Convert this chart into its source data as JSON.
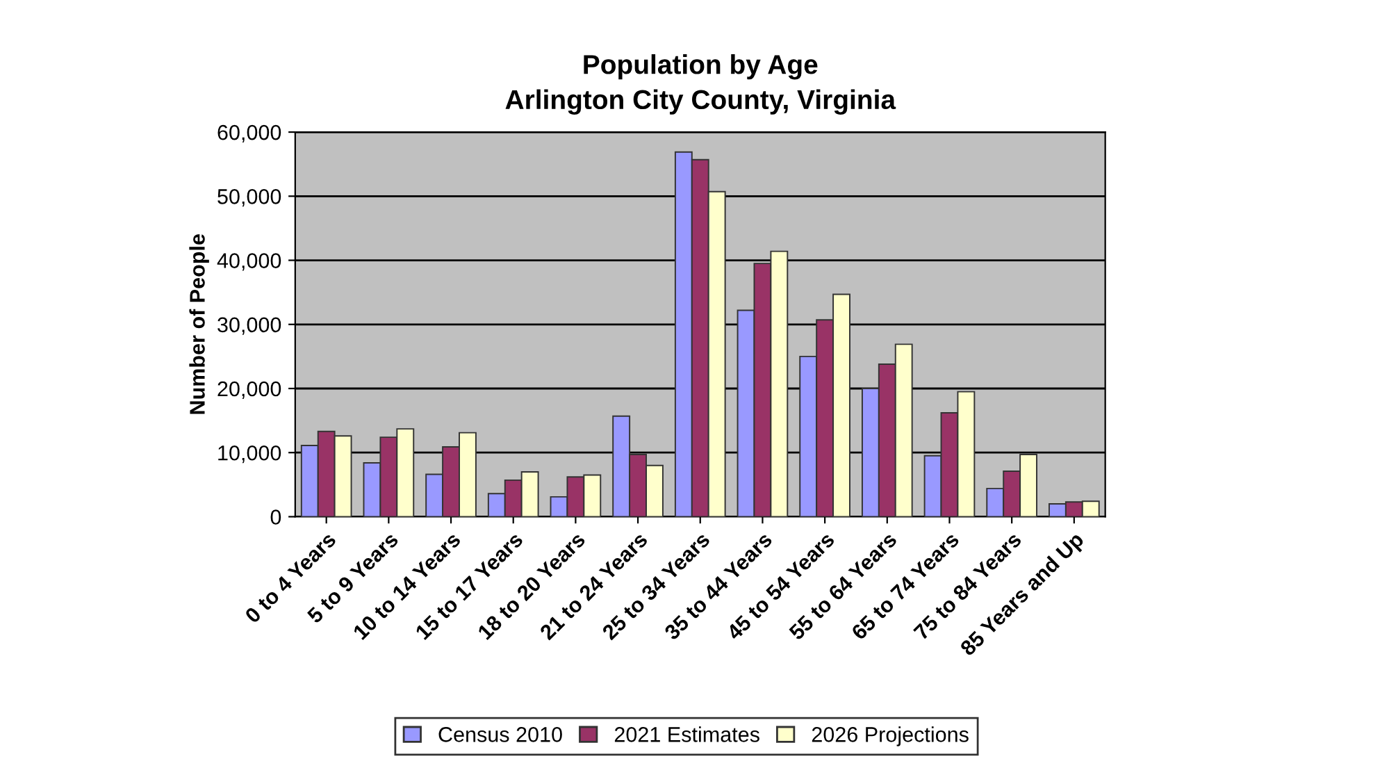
{
  "chart_data": {
    "type": "bar",
    "title": "Population by Age\nArlington City County, Virginia",
    "ylabel": "Number of People",
    "categories": [
      "0 to 4 Years",
      "5 to 9 Years",
      "10 to 14 Years",
      "15 to 17 Years",
      "18 to 20 Years",
      "21 to 24 Years",
      "25 to 34 Years",
      "35 to 44 Years",
      "45 to 54 Years",
      "55 to 64 Years",
      "65 to 74 Years",
      "75 to 84 Years",
      "85 Years and Up"
    ],
    "series": [
      {
        "name": "Census 2010",
        "color": "#9999ff",
        "values": [
          11100,
          8400,
          6600,
          3600,
          3100,
          15700,
          56900,
          32200,
          25000,
          20000,
          9500,
          4400,
          2000
        ]
      },
      {
        "name": "2021 Estimates",
        "color": "#993366",
        "values": [
          13300,
          12400,
          10900,
          5700,
          6200,
          9700,
          55700,
          39500,
          30700,
          23800,
          16200,
          7100,
          2300
        ]
      },
      {
        "name": "2026 Projections",
        "color": "#ffffcc",
        "values": [
          12600,
          13700,
          13100,
          7000,
          6500,
          8000,
          50700,
          41400,
          34700,
          26900,
          19500,
          9700,
          2400
        ]
      }
    ],
    "ylim": [
      0,
      60000
    ],
    "yticks": [
      {
        "value": 0,
        "label": "0"
      },
      {
        "value": 10000,
        "label": "10,000"
      },
      {
        "value": 20000,
        "label": "20,000"
      },
      {
        "value": 30000,
        "label": "30,000"
      },
      {
        "value": 40000,
        "label": "40,000"
      },
      {
        "value": 50000,
        "label": "50,000"
      },
      {
        "value": 60000,
        "label": "60,000"
      }
    ],
    "grid": "y",
    "legend": "bottom"
  }
}
